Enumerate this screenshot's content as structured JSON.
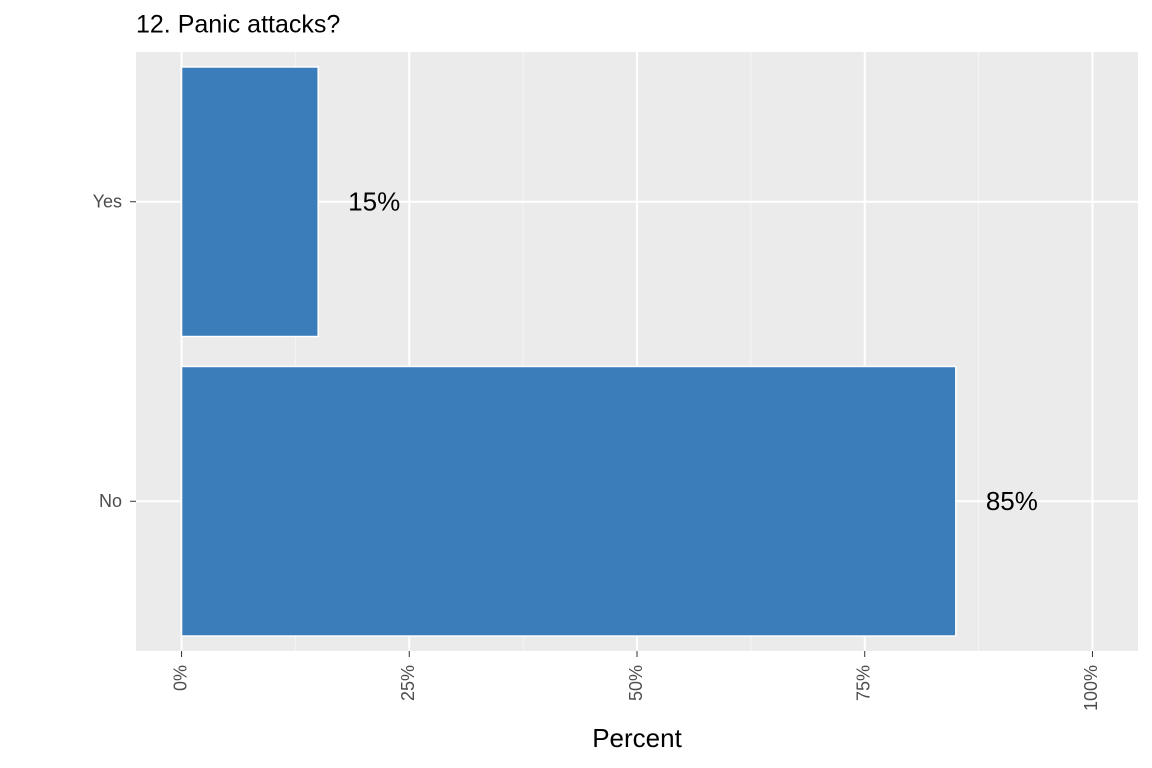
{
  "chart_data": {
    "type": "bar",
    "orientation": "horizontal",
    "title": "12. Panic attacks?",
    "x_label": "Percent",
    "categories": [
      "Yes",
      "No"
    ],
    "values": [
      15,
      85
    ],
    "value_labels": [
      "15%",
      "85%"
    ],
    "color": "#3a7dba",
    "xlim": [
      -5,
      105
    ],
    "xticks": [
      {
        "value": 0,
        "label": "0%"
      },
      {
        "value": 25,
        "label": "25%"
      },
      {
        "value": 50,
        "label": "50%"
      },
      {
        "value": 75,
        "label": "75%"
      },
      {
        "value": 100,
        "label": "100%"
      }
    ],
    "grid": true
  }
}
